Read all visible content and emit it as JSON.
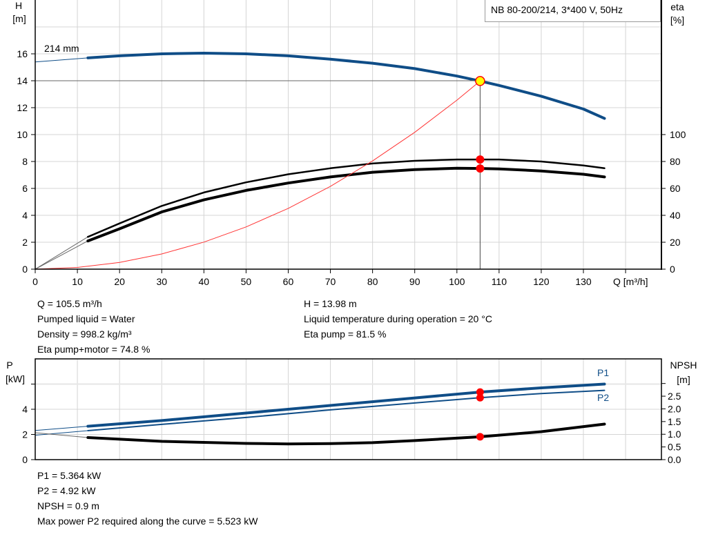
{
  "top_chart": {
    "legend": "NB 80-200/214, 3*400 V, 50Hz",
    "y_left_label": [
      "H",
      "[m]"
    ],
    "y_right_label": [
      "eta",
      "[%]"
    ],
    "x_label": "Q [m³/h]",
    "impeller_label": "214 mm"
  },
  "bottom_chart": {
    "y_left_label": [
      "P",
      "[kW]"
    ],
    "y_right_label": [
      "NPSH",
      "[m]"
    ],
    "p1_label": "P1",
    "p2_label": "P2"
  },
  "info_left": [
    "Q = 105.5 m³/h",
    "Pumped liquid = Water",
    "Density = 998.2 kg/m³",
    "Eta pump+motor = 74.8 %"
  ],
  "info_right": [
    "H = 13.98 m",
    "Liquid temperature during operation = 20 °C",
    "Eta pump = 81.5 %"
  ],
  "info_bottom": [
    "P1 = 5.364 kW",
    "P2 = 4.92 kW",
    "NPSH = 0.9 m",
    "Max power P2 required along the curve = 5.523 kW"
  ],
  "chart_data": [
    {
      "type": "line",
      "xlabel": "Q [m³/h]",
      "ylabel": "H [m]",
      "y2label": "eta [%]",
      "xlim": [
        0,
        148.5
      ],
      "ylim": [
        0,
        20
      ],
      "y2lim": [
        0,
        200
      ],
      "xticks": [
        0,
        10,
        20,
        30,
        40,
        50,
        60,
        70,
        80,
        90,
        100,
        110,
        120,
        130,
        140
      ],
      "yticks": [
        0,
        2,
        4,
        6,
        8,
        10,
        12,
        14,
        16
      ],
      "y2ticks": [
        0,
        20,
        40,
        60,
        80,
        100
      ],
      "grid": true,
      "colors": {
        "head": "#0f4d87",
        "eta": "#000000",
        "system": "#ff3333",
        "point": "#ff0000",
        "duty_point": "#ffff00"
      },
      "series": [
        {
          "id": "head",
          "axis": "left",
          "extrapolated": [
            [
              0,
              15.4
            ],
            [
              12.5,
              15.7
            ]
          ],
          "points": [
            [
              12.5,
              15.7
            ],
            [
              20,
              15.85
            ],
            [
              30,
              16.0
            ],
            [
              40,
              16.05
            ],
            [
              50,
              16.0
            ],
            [
              60,
              15.85
            ],
            [
              70,
              15.6
            ],
            [
              80,
              15.3
            ],
            [
              90,
              14.9
            ],
            [
              100,
              14.35
            ],
            [
              105.5,
              13.98
            ],
            [
              110,
              13.65
            ],
            [
              120,
              12.85
            ],
            [
              130,
              11.9
            ],
            [
              135,
              11.2
            ]
          ]
        },
        {
          "id": "eta_pump",
          "axis": "right",
          "extrapolated": [
            [
              0,
              0
            ],
            [
              12.5,
              24
            ]
          ],
          "points": [
            [
              12.5,
              24
            ],
            [
              20,
              34
            ],
            [
              30,
              47
            ],
            [
              40,
              57
            ],
            [
              50,
              64.5
            ],
            [
              60,
              70.5
            ],
            [
              70,
              75
            ],
            [
              80,
              78.5
            ],
            [
              90,
              80.5
            ],
            [
              100,
              81.5
            ],
            [
              105.5,
              81.5
            ],
            [
              110,
              81.5
            ],
            [
              120,
              80
            ],
            [
              130,
              77
            ],
            [
              135,
              75
            ]
          ]
        },
        {
          "id": "eta_pump_motor",
          "axis": "right",
          "extrapolated": [
            [
              0,
              0
            ],
            [
              12.5,
              21
            ]
          ],
          "points": [
            [
              12.5,
              21
            ],
            [
              20,
              30
            ],
            [
              30,
              42.5
            ],
            [
              40,
              51.5
            ],
            [
              50,
              58.5
            ],
            [
              60,
              64
            ],
            [
              70,
              68.5
            ],
            [
              80,
              72
            ],
            [
              90,
              74
            ],
            [
              100,
              75
            ],
            [
              105.5,
              74.8
            ],
            [
              110,
              74.5
            ],
            [
              120,
              73
            ],
            [
              130,
              70.5
            ],
            [
              135,
              68.5
            ]
          ]
        },
        {
          "id": "system_curve",
          "axis": "left",
          "points": [
            [
              0,
              0
            ],
            [
              10,
              0.13
            ],
            [
              20,
              0.5
            ],
            [
              30,
              1.13
            ],
            [
              40,
              2.01
            ],
            [
              50,
              3.14
            ],
            [
              60,
              4.52
            ],
            [
              70,
              6.15
            ],
            [
              80,
              8.04
            ],
            [
              90,
              10.17
            ],
            [
              100,
              12.56
            ],
            [
              105.5,
              13.98
            ]
          ]
        }
      ],
      "duty_point": {
        "q": 105.5,
        "h": 13.98,
        "eta_pump": 81.5,
        "eta_pump_motor": 74.8
      }
    },
    {
      "type": "line",
      "ylabel": "P [kW]",
      "y2label": "NPSH [m]",
      "xlim": [
        0,
        148.5
      ],
      "ylim": [
        0,
        8
      ],
      "y2lim": [
        0,
        3.97
      ],
      "xticks": [
        0,
        10,
        20,
        30,
        40,
        50,
        60,
        70,
        80,
        90,
        100,
        110,
        120,
        130,
        140
      ],
      "yticks": [
        0,
        2,
        4,
        6
      ],
      "yticklabels": [
        "0",
        "2",
        "4",
        ""
      ],
      "y2ticks": [
        0,
        0.5,
        1,
        1.5,
        2,
        2.5,
        3
      ],
      "y2ticklabels": [
        "0.0",
        "0.5",
        "1.0",
        "1.5",
        "2.0",
        "2.5",
        ""
      ],
      "grid": true,
      "colors": {
        "p1": "#0f4d87",
        "p2": "#0f4d87",
        "npsh": "#000000",
        "point": "#ff0000"
      },
      "series": [
        {
          "id": "p1",
          "name": "P1",
          "axis": "left",
          "extrapolated": [
            [
              0,
              2.32
            ],
            [
              12.5,
              2.65
            ]
          ],
          "points": [
            [
              12.5,
              2.65
            ],
            [
              30,
              3.1
            ],
            [
              50,
              3.7
            ],
            [
              70,
              4.3
            ],
            [
              90,
              4.9
            ],
            [
              105.5,
              5.364
            ],
            [
              120,
              5.7
            ],
            [
              135,
              6.0
            ]
          ]
        },
        {
          "id": "p2",
          "name": "P2",
          "axis": "left",
          "extrapolated": [
            [
              0,
              1.94
            ],
            [
              12.5,
              2.3
            ]
          ],
          "points": [
            [
              12.5,
              2.3
            ],
            [
              30,
              2.8
            ],
            [
              50,
              3.35
            ],
            [
              70,
              3.95
            ],
            [
              90,
              4.5
            ],
            [
              105.5,
              4.92
            ],
            [
              120,
              5.25
            ],
            [
              135,
              5.5
            ]
          ]
        },
        {
          "id": "npsh",
          "axis": "right",
          "extrapolated": [
            [
              0,
              1.06
            ],
            [
              12.5,
              0.87
            ]
          ],
          "points": [
            [
              12.5,
              0.87
            ],
            [
              30,
              0.72
            ],
            [
              50,
              0.64
            ],
            [
              60,
              0.62
            ],
            [
              70,
              0.63
            ],
            [
              80,
              0.67
            ],
            [
              90,
              0.75
            ],
            [
              105.5,
              0.9
            ],
            [
              120,
              1.1
            ],
            [
              135,
              1.4
            ]
          ]
        }
      ],
      "duty_point": {
        "q": 105.5,
        "p1": 5.364,
        "p2": 4.92,
        "npsh": 0.9
      }
    }
  ]
}
